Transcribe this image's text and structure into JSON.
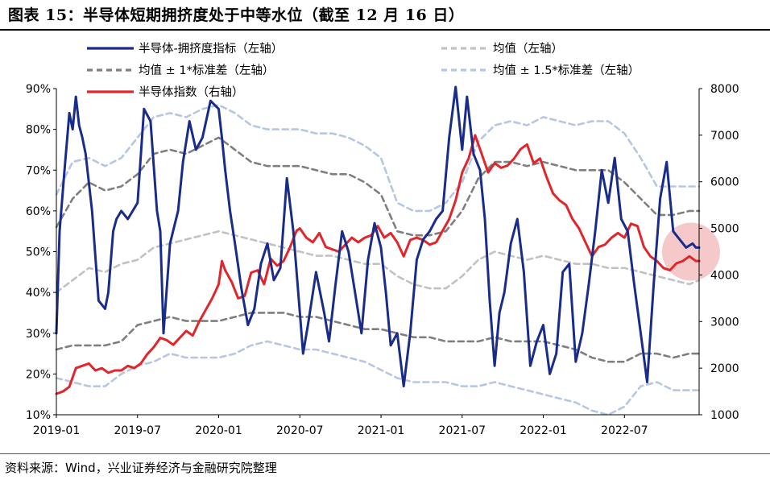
{
  "figure": {
    "title": "图表 15：半导体短期拥挤度处于中等水位（截至 12 月 16 日）",
    "source": "资料来源：Wind，兴业证券经济与金融研究院整理"
  },
  "colors": {
    "crowding": "#1a2c8a",
    "index": "#e0262a",
    "mean": "#c2c2c2",
    "std1": "#7f7f7f",
    "std15": "#b5c7e3",
    "highlight": "#f2b6b8"
  },
  "chart_data": {
    "type": "line",
    "title": "半导体短期拥挤度处于中等水位（截至 12 月 16 日）",
    "x_tick_labels": [
      "2019-01",
      "2019-07",
      "2020-01",
      "2020-07",
      "2021-01",
      "2021-07",
      "2022-01",
      "2022-07"
    ],
    "x_tick_years": [
      2019.0,
      2019.5,
      2020.0,
      2020.5,
      2021.0,
      2021.5,
      2022.0,
      2022.5
    ],
    "x_range": [
      2019.0,
      2022.96
    ],
    "left_axis": {
      "range": [
        10,
        90
      ],
      "ticks": [
        10,
        20,
        30,
        40,
        50,
        60,
        70,
        80,
        90
      ],
      "tick_labels": [
        "10%",
        "20%",
        "30%",
        "40%",
        "50%",
        "60%",
        "70%",
        "80%",
        "90%"
      ]
    },
    "right_axis": {
      "range": [
        1000,
        8000
      ],
      "ticks": [
        1000,
        2000,
        3000,
        4000,
        5000,
        6000,
        7000,
        8000
      ],
      "tick_labels": [
        "1000",
        "2000",
        "3000",
        "4000",
        "5000",
        "6000",
        "7000",
        "8000"
      ]
    },
    "legend": {
      "crowding": "半导体-拥挤度指标（左轴）",
      "mean": "均值（左轴）",
      "std1": "均值 ± 1*标准差（左轴）",
      "std15": "均值 ± 1.5*标准差（左轴）",
      "index": "半导体指数（右轴）"
    },
    "series": [
      {
        "name": "半导体-拥挤度指标（左轴）",
        "axis": "left",
        "style": "solid",
        "x": [
          2019.0,
          2019.02,
          2019.05,
          2019.08,
          2019.1,
          2019.12,
          2019.14,
          2019.16,
          2019.18,
          2019.22,
          2019.26,
          2019.3,
          2019.32,
          2019.35,
          2019.37,
          2019.4,
          2019.44,
          2019.5,
          2019.54,
          2019.58,
          2019.62,
          2019.64,
          2019.66,
          2019.7,
          2019.75,
          2019.78,
          2019.82,
          2019.86,
          2019.9,
          2019.95,
          2020.0,
          2020.02,
          2020.04,
          2020.07,
          2020.1,
          2020.14,
          2020.18,
          2020.22,
          2020.26,
          2020.3,
          2020.34,
          2020.38,
          2020.42,
          2020.46,
          2020.5,
          2020.52,
          2020.55,
          2020.6,
          2020.65,
          2020.68,
          2020.72,
          2020.76,
          2020.8,
          2020.84,
          2020.88,
          2020.92,
          2020.96,
          2021.0,
          2021.03,
          2021.06,
          2021.1,
          2021.14,
          2021.18,
          2021.22,
          2021.26,
          2021.3,
          2021.34,
          2021.38,
          2021.42,
          2021.46,
          2021.5,
          2021.53,
          2021.57,
          2021.61,
          2021.64,
          2021.67,
          2021.7,
          2021.73,
          2021.76,
          2021.8,
          2021.84,
          2021.88,
          2021.92,
          2021.96,
          2022.0,
          2022.04,
          2022.08,
          2022.12,
          2022.16,
          2022.2,
          2022.24,
          2022.28,
          2022.32,
          2022.36,
          2022.4,
          2022.44,
          2022.48,
          2022.52,
          2022.56,
          2022.6,
          2022.64,
          2022.68,
          2022.72,
          2022.76,
          2022.8,
          2022.84,
          2022.88,
          2022.92,
          2022.94,
          2022.96
        ],
        "y": [
          30,
          55,
          70,
          84,
          80,
          88,
          81,
          78,
          74,
          60,
          38,
          36,
          40,
          55,
          58,
          60,
          58,
          62,
          85,
          82,
          60,
          55,
          30,
          52,
          60,
          72,
          82,
          75,
          78,
          87,
          85,
          78,
          70,
          60,
          52,
          41,
          32,
          36,
          47,
          52,
          43,
          46,
          68,
          55,
          35,
          25,
          32,
          45,
          35,
          28,
          42,
          55,
          50,
          40,
          30,
          48,
          57,
          51,
          40,
          27,
          30,
          17,
          30,
          48,
          53,
          55,
          58,
          60,
          78,
          92,
          75,
          88,
          74,
          70,
          58,
          38,
          22,
          35,
          40,
          52,
          58,
          45,
          22,
          28,
          32,
          20,
          25,
          45,
          47,
          23,
          30,
          42,
          55,
          70,
          62,
          73,
          58,
          55,
          42,
          30,
          18,
          42,
          63,
          72,
          55,
          53,
          51,
          52,
          51,
          51
        ]
      },
      {
        "name": "均值（左轴）",
        "axis": "left",
        "style": "dashed",
        "x": [
          2019.0,
          2019.1,
          2019.2,
          2019.3,
          2019.4,
          2019.5,
          2019.6,
          2019.7,
          2019.8,
          2019.9,
          2020.0,
          2020.1,
          2020.2,
          2020.3,
          2020.4,
          2020.5,
          2020.6,
          2020.7,
          2020.8,
          2020.9,
          2021.0,
          2021.1,
          2021.2,
          2021.3,
          2021.4,
          2021.5,
          2021.6,
          2021.7,
          2021.8,
          2021.9,
          2022.0,
          2022.1,
          2022.2,
          2022.3,
          2022.4,
          2022.5,
          2022.6,
          2022.7,
          2022.8,
          2022.9,
          2022.96
        ],
        "y": [
          40,
          43,
          46,
          45,
          47,
          48,
          51,
          52,
          53,
          54,
          55,
          54,
          53,
          52,
          51,
          50,
          49,
          49,
          48,
          47,
          47,
          44,
          42,
          41,
          41,
          44,
          48,
          50,
          49,
          48,
          49,
          48,
          47,
          47,
          46,
          46,
          45,
          44,
          43,
          42,
          43
        ]
      },
      {
        "name": "均值 ± 1*标准差（左轴）上",
        "axis": "left",
        "style": "dashed",
        "x": [
          2019.0,
          2019.1,
          2019.2,
          2019.3,
          2019.4,
          2019.5,
          2019.6,
          2019.7,
          2019.8,
          2019.9,
          2020.0,
          2020.1,
          2020.2,
          2020.3,
          2020.4,
          2020.5,
          2020.6,
          2020.7,
          2020.8,
          2020.9,
          2021.0,
          2021.1,
          2021.2,
          2021.3,
          2021.4,
          2021.5,
          2021.6,
          2021.7,
          2021.8,
          2021.9,
          2022.0,
          2022.1,
          2022.2,
          2022.3,
          2022.4,
          2022.5,
          2022.6,
          2022.7,
          2022.8,
          2022.9,
          2022.96
        ],
        "y": [
          56,
          63,
          67,
          65,
          66,
          69,
          74,
          75,
          74,
          76,
          78,
          75,
          72,
          71,
          71,
          71,
          70,
          69,
          69,
          67,
          64,
          55,
          54,
          54,
          55,
          60,
          68,
          72,
          72,
          71,
          72,
          71,
          70,
          70,
          70,
          67,
          63,
          59,
          59,
          60,
          60
        ]
      },
      {
        "name": "均值 ± 1*标准差（左轴）下",
        "axis": "left",
        "style": "dashed",
        "x": [
          2019.0,
          2019.1,
          2019.2,
          2019.3,
          2019.4,
          2019.5,
          2019.6,
          2019.7,
          2019.8,
          2019.9,
          2020.0,
          2020.1,
          2020.2,
          2020.3,
          2020.4,
          2020.5,
          2020.6,
          2020.7,
          2020.8,
          2020.9,
          2021.0,
          2021.1,
          2021.2,
          2021.3,
          2021.4,
          2021.5,
          2021.6,
          2021.7,
          2021.8,
          2021.9,
          2022.0,
          2022.1,
          2022.2,
          2022.3,
          2022.4,
          2022.5,
          2022.6,
          2022.7,
          2022.8,
          2022.9,
          2022.96
        ],
        "y": [
          26,
          27,
          27,
          27,
          28,
          32,
          33,
          34,
          33,
          33,
          33,
          34,
          35,
          35,
          35,
          34,
          34,
          33,
          32,
          31,
          31,
          30,
          29,
          29,
          28,
          28,
          28,
          29,
          28,
          28,
          28,
          27,
          26,
          24,
          23,
          23,
          25,
          25,
          24,
          25,
          25
        ]
      },
      {
        "name": "均值 ± 1.5*标准差（左轴）上",
        "axis": "left",
        "style": "dashed",
        "x": [
          2019.0,
          2019.1,
          2019.2,
          2019.3,
          2019.4,
          2019.5,
          2019.6,
          2019.7,
          2019.8,
          2019.9,
          2020.0,
          2020.1,
          2020.2,
          2020.3,
          2020.4,
          2020.5,
          2020.6,
          2020.7,
          2020.8,
          2020.9,
          2021.0,
          2021.1,
          2021.2,
          2021.3,
          2021.4,
          2021.5,
          2021.6,
          2021.7,
          2021.8,
          2021.9,
          2022.0,
          2022.1,
          2022.2,
          2022.3,
          2022.4,
          2022.5,
          2022.6,
          2022.7,
          2022.8,
          2022.9,
          2022.96
        ],
        "y": [
          64,
          72,
          73,
          71,
          73,
          78,
          83,
          84,
          83,
          85,
          86,
          84,
          81,
          80,
          80,
          80,
          79,
          79,
          78,
          76,
          73,
          62,
          60,
          60,
          62,
          67,
          77,
          81,
          82,
          81,
          83,
          82,
          81,
          82,
          82,
          79,
          73,
          66,
          66,
          66,
          66
        ]
      },
      {
        "name": "均值 ± 1.5*标准差（左轴）下",
        "axis": "left",
        "style": "dashed",
        "x": [
          2019.0,
          2019.1,
          2019.2,
          2019.3,
          2019.4,
          2019.5,
          2019.6,
          2019.7,
          2019.8,
          2019.9,
          2020.0,
          2020.1,
          2020.2,
          2020.3,
          2020.4,
          2020.5,
          2020.6,
          2020.7,
          2020.8,
          2020.9,
          2021.0,
          2021.1,
          2021.2,
          2021.3,
          2021.4,
          2021.5,
          2021.6,
          2021.7,
          2021.8,
          2021.9,
          2022.0,
          2022.1,
          2022.2,
          2022.3,
          2022.4,
          2022.5,
          2022.6,
          2022.7,
          2022.8,
          2022.9,
          2022.96
        ],
        "y": [
          19,
          18,
          17,
          17,
          20,
          22,
          23,
          25,
          24,
          24,
          24,
          25,
          27,
          28,
          27,
          26,
          26,
          25,
          24,
          23,
          21,
          19,
          18,
          18,
          18,
          17,
          17,
          18,
          17,
          16,
          15,
          14,
          13,
          11,
          10,
          12,
          17,
          18,
          16,
          16,
          16
        ]
      },
      {
        "name": "半导体指数（右轴）",
        "axis": "right",
        "style": "solid",
        "x": [
          2019.0,
          2019.04,
          2019.08,
          2019.12,
          2019.16,
          2019.2,
          2019.24,
          2019.28,
          2019.32,
          2019.36,
          2019.4,
          2019.44,
          2019.48,
          2019.52,
          2019.56,
          2019.6,
          2019.64,
          2019.68,
          2019.72,
          2019.76,
          2019.8,
          2019.84,
          2019.88,
          2019.92,
          2019.96,
          2020.0,
          2020.02,
          2020.04,
          2020.08,
          2020.12,
          2020.16,
          2020.2,
          2020.24,
          2020.28,
          2020.32,
          2020.36,
          2020.4,
          2020.44,
          2020.48,
          2020.5,
          2020.54,
          2020.58,
          2020.62,
          2020.66,
          2020.7,
          2020.74,
          2020.78,
          2020.82,
          2020.86,
          2020.9,
          2020.94,
          2020.98,
          2021.02,
          2021.06,
          2021.1,
          2021.14,
          2021.18,
          2021.22,
          2021.26,
          2021.3,
          2021.34,
          2021.38,
          2021.42,
          2021.46,
          2021.5,
          2021.54,
          2021.58,
          2021.62,
          2021.66,
          2021.7,
          2021.74,
          2021.78,
          2021.82,
          2021.86,
          2021.9,
          2021.94,
          2021.98,
          2022.02,
          2022.06,
          2022.1,
          2022.14,
          2022.18,
          2022.22,
          2022.26,
          2022.3,
          2022.34,
          2022.38,
          2022.42,
          2022.46,
          2022.5,
          2022.54,
          2022.58,
          2022.62,
          2022.66,
          2022.7,
          2022.74,
          2022.78,
          2022.82,
          2022.86,
          2022.9,
          2022.94,
          2022.96
        ],
        "y": [
          1450,
          1500,
          1600,
          2000,
          2050,
          2100,
          1950,
          2000,
          1900,
          1950,
          1950,
          2050,
          2000,
          2100,
          2300,
          2450,
          2650,
          2600,
          2500,
          2650,
          2800,
          2700,
          3000,
          3250,
          3500,
          3800,
          4300,
          4100,
          3850,
          3500,
          3550,
          4050,
          4100,
          3800,
          4350,
          4200,
          4300,
          4600,
          4950,
          5000,
          4800,
          4700,
          4900,
          4600,
          4550,
          4500,
          4650,
          4800,
          4700,
          4800,
          4850,
          5050,
          4800,
          4900,
          4700,
          4400,
          4750,
          4800,
          4750,
          4650,
          4700,
          4950,
          5200,
          5600,
          6200,
          6500,
          7000,
          6600,
          6200,
          6400,
          6300,
          6350,
          6500,
          6700,
          6800,
          6400,
          6500,
          6100,
          5750,
          5600,
          5500,
          5200,
          5000,
          4700,
          4400,
          4600,
          4650,
          4800,
          4900,
          4800,
          5100,
          5050,
          4600,
          4400,
          4300,
          4150,
          4100,
          4250,
          4300,
          4400,
          4300,
          4300
        ]
      }
    ]
  }
}
